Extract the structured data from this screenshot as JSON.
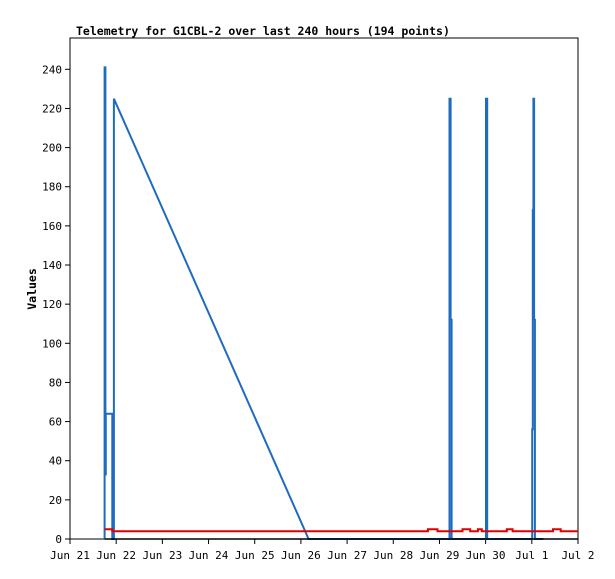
{
  "chart_data": {
    "type": "line",
    "title": "Telemetry for G1CBL-2 over last 240 hours (194 points)",
    "ylabel": "Values",
    "xlabel": "",
    "x_unit": "hours since Jun 21 00:00",
    "xlim": [
      0,
      264
    ],
    "ylim": [
      0,
      256
    ],
    "x_tick_labels": [
      {
        "x": 0,
        "label": "Jun 21"
      },
      {
        "x": 24,
        "label": "Jun 22"
      },
      {
        "x": 48,
        "label": "Jun 23"
      },
      {
        "x": 72,
        "label": "Jun 24"
      },
      {
        "x": 96,
        "label": "Jun 25"
      },
      {
        "x": 120,
        "label": "Jun 26"
      },
      {
        "x": 144,
        "label": "Jun 27"
      },
      {
        "x": 168,
        "label": "Jun 28"
      },
      {
        "x": 192,
        "label": "Jun 29"
      },
      {
        "x": 216,
        "label": "Jun 30"
      },
      {
        "x": 240,
        "label": "Jul 1"
      },
      {
        "x": 264,
        "label": "Jul 2"
      }
    ],
    "y_ticks": [
      0,
      20,
      40,
      60,
      80,
      100,
      120,
      140,
      160,
      180,
      200,
      220,
      240
    ],
    "grid": false,
    "legend": "none",
    "series": [
      {
        "color": "#1f6bbf",
        "points": [
          [
            18.0,
            0
          ],
          [
            18.0,
            241
          ],
          [
            18.4,
            241
          ],
          [
            18.4,
            33
          ],
          [
            18.6,
            33
          ],
          [
            18.6,
            64
          ],
          [
            22.0,
            64
          ],
          [
            22.0,
            0
          ],
          [
            22.8,
            0
          ],
          [
            22.8,
            225
          ],
          [
            124.0,
            0
          ],
          [
            197.2,
            0
          ],
          [
            197.2,
            225
          ],
          [
            197.8,
            225
          ],
          [
            197.8,
            112
          ],
          [
            198.3,
            112
          ],
          [
            198.3,
            0
          ],
          [
            216.2,
            0
          ],
          [
            216.2,
            225
          ],
          [
            216.8,
            225
          ],
          [
            216.8,
            0
          ],
          [
            240.2,
            0
          ],
          [
            240.2,
            56
          ],
          [
            240.5,
            56
          ],
          [
            240.5,
            168
          ],
          [
            240.8,
            168
          ],
          [
            240.8,
            225
          ],
          [
            241.2,
            225
          ],
          [
            241.2,
            112
          ],
          [
            241.6,
            112
          ],
          [
            241.6,
            0
          ],
          [
            246,
            0
          ]
        ]
      },
      {
        "color": "#e00000",
        "points": [
          [
            18.0,
            5
          ],
          [
            22.0,
            5
          ],
          [
            22.0,
            4
          ],
          [
            186.0,
            4
          ],
          [
            186.0,
            5
          ],
          [
            191.0,
            5
          ],
          [
            191.0,
            4
          ],
          [
            204.0,
            4
          ],
          [
            204.0,
            5
          ],
          [
            208.0,
            5
          ],
          [
            208.0,
            4
          ],
          [
            212.0,
            4
          ],
          [
            212.0,
            5
          ],
          [
            214.0,
            5
          ],
          [
            214.0,
            4
          ],
          [
            227.0,
            4
          ],
          [
            227.0,
            5
          ],
          [
            230.0,
            5
          ],
          [
            230.0,
            4
          ],
          [
            251.0,
            4
          ],
          [
            251.0,
            5
          ],
          [
            255.0,
            5
          ],
          [
            255.0,
            4
          ],
          [
            275.0,
            4
          ]
        ]
      },
      {
        "color": "#000000",
        "points": [
          [
            18.0,
            0
          ],
          [
            275.0,
            0
          ]
        ]
      }
    ]
  }
}
